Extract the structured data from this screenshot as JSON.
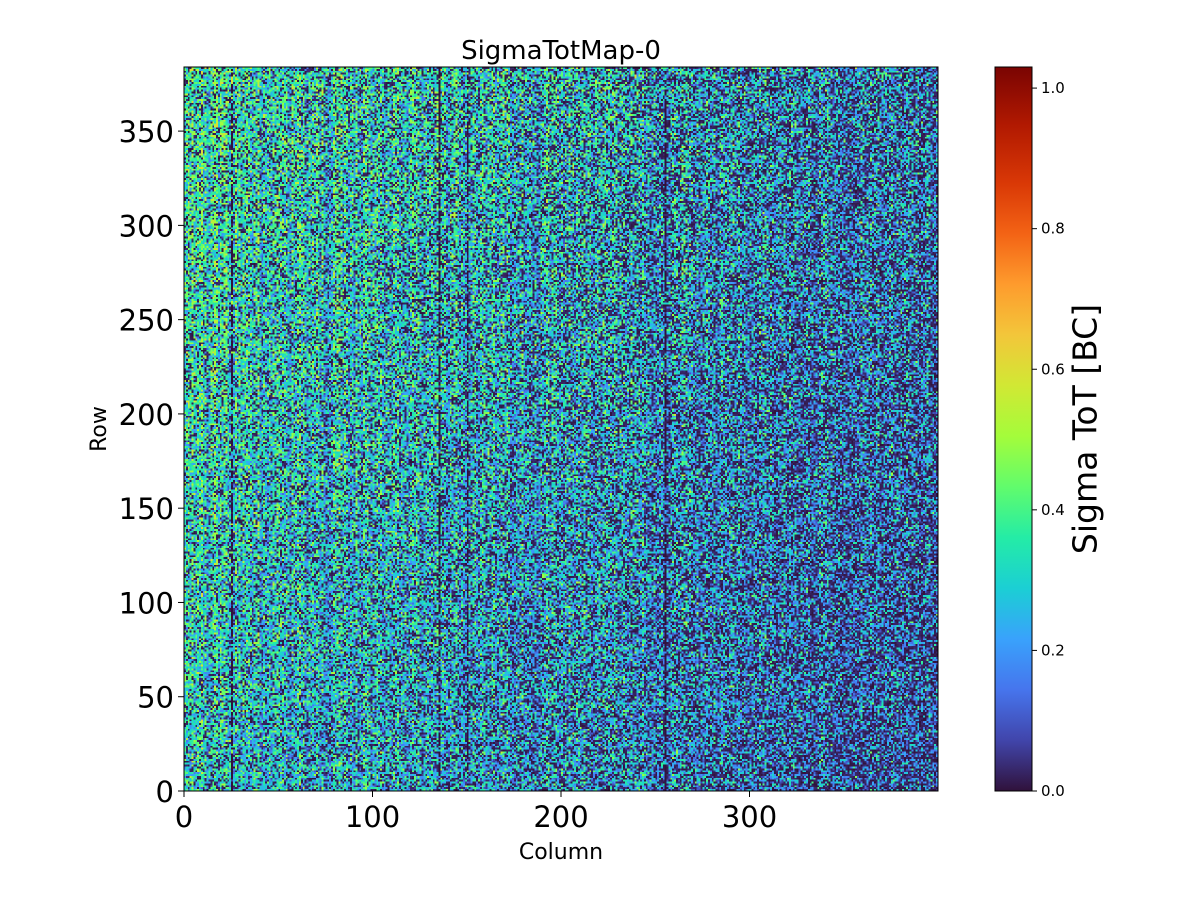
{
  "chart_data": {
    "type": "heatmap",
    "title": "SigmaTotMap-0",
    "xlabel": "Column",
    "ylabel": "Row",
    "xlim": [
      0,
      400
    ],
    "ylim": [
      0,
      384
    ],
    "x_ticks": [
      0,
      100,
      200,
      300
    ],
    "y_ticks": [
      0,
      50,
      100,
      150,
      200,
      250,
      300,
      350
    ],
    "colorbar": {
      "label": "Sigma ToT [BC]",
      "colormap": "turbo",
      "range": [
        0.0,
        1.03
      ],
      "ticks": [
        "0.0",
        "0.2",
        "0.4",
        "0.6",
        "0.8",
        "1.0"
      ]
    },
    "summary": {
      "typical_value_range": [
        0.0,
        0.55
      ],
      "trend": "values higher near low columns and high rows; darker (near 0) toward high columns",
      "zero_valued_columns_approx": [
        25,
        135,
        150,
        255
      ]
    }
  }
}
